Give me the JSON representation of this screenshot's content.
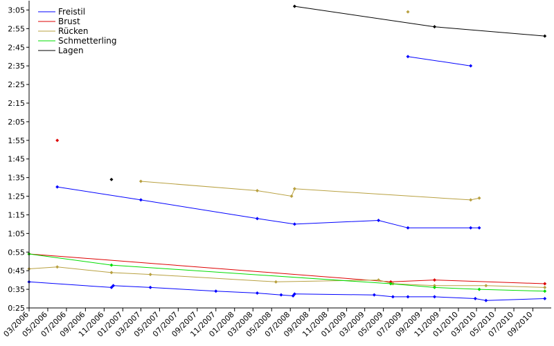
{
  "chart_data": {
    "type": "line",
    "x_axis": {
      "type": "date",
      "range": [
        "2006-03-01",
        "2010-10-31"
      ],
      "tick_labels": [
        "03/2006",
        "05/2006",
        "07/2006",
        "09/2006",
        "11/2006",
        "01/2007",
        "03/2007",
        "05/2007",
        "07/2007",
        "09/2007",
        "11/2007",
        "01/2008",
        "03/2008",
        "05/2008",
        "07/2008",
        "09/2008",
        "11/2008",
        "01/2009",
        "03/2009",
        "05/2009",
        "07/2009",
        "09/2009",
        "11/2009",
        "01/2010",
        "03/2010",
        "05/2010",
        "07/2010",
        "09/2010"
      ]
    },
    "y_axis": {
      "unit": "m:ss",
      "range": [
        "0:25",
        "3:10"
      ],
      "tick_labels": [
        "0:25",
        "0:35",
        "0:45",
        "0:55",
        "1:05",
        "1:15",
        "1:25",
        "1:35",
        "1:45",
        "1:55",
        "2:05",
        "2:15",
        "2:25",
        "2:35",
        "2:45",
        "2:55",
        "3:05"
      ]
    },
    "grid": false,
    "legend_position": "top-left",
    "series": [
      {
        "name": "Freistil",
        "color": "#0000ff",
        "lines": [
          [
            [
              "2006-03-01",
              "0:39"
            ],
            [
              "2006-11-25",
              "0:36"
            ],
            [
              "2006-12-01",
              "0:37"
            ],
            [
              "2007-04-01",
              "0:36"
            ],
            [
              "2007-11-01",
              "0:34"
            ],
            [
              "2008-03-15",
              "0:33"
            ],
            [
              "2008-06-01",
              "0:32"
            ],
            [
              "2008-07-10",
              "0:31.5"
            ],
            [
              "2008-07-15",
              "0:32.5"
            ],
            [
              "2009-04-01",
              "0:32"
            ],
            [
              "2009-06-01",
              "0:31"
            ],
            [
              "2009-07-20",
              "0:31"
            ],
            [
              "2009-10-15",
              "0:31"
            ],
            [
              "2010-02-25",
              "0:30"
            ],
            [
              "2010-04-01",
              "0:29"
            ],
            [
              "2010-10-10",
              "0:30"
            ]
          ],
          [
            [
              "2006-06-01",
              "1:30"
            ],
            [
              "2007-03-01",
              "1:23"
            ],
            [
              "2008-03-15",
              "1:13"
            ],
            [
              "2008-07-15",
              "1:10"
            ],
            [
              "2009-04-15",
              "1:12"
            ],
            [
              "2009-07-20",
              "1:08"
            ],
            [
              "2010-02-10",
              "1:08"
            ],
            [
              "2010-03-10",
              "1:08"
            ]
          ],
          [
            [
              "2009-07-20",
              "2:40"
            ],
            [
              "2010-02-10",
              "2:35"
            ]
          ]
        ]
      },
      {
        "name": "Brust",
        "color": "#dd0000",
        "lines": [
          [
            [
              "2006-03-01",
              "0:54"
            ],
            [
              "2009-05-25",
              "0:39"
            ],
            [
              "2009-10-15",
              "0:40"
            ],
            [
              "2010-10-10",
              "0:38"
            ]
          ]
        ],
        "points": [
          [
            "2006-06-01",
            "1:55"
          ]
        ]
      },
      {
        "name": "Rücken",
        "color": "#b8a040",
        "lines": [
          [
            [
              "2006-03-01",
              "0:46"
            ],
            [
              "2006-06-01",
              "0:47"
            ],
            [
              "2006-11-25",
              "0:44"
            ],
            [
              "2007-04-01",
              "0:43"
            ],
            [
              "2008-05-15",
              "0:39"
            ],
            [
              "2009-04-15",
              "0:40"
            ],
            [
              "2009-06-01",
              "0:38"
            ],
            [
              "2009-10-15",
              "0:37"
            ],
            [
              "2010-04-01",
              "0:37"
            ],
            [
              "2010-10-10",
              "0:36"
            ]
          ],
          [
            [
              "2007-03-01",
              "1:33"
            ],
            [
              "2008-03-15",
              "1:28"
            ],
            [
              "2008-07-05",
              "1:25"
            ],
            [
              "2008-07-15",
              "1:29"
            ],
            [
              "2010-02-10",
              "1:23"
            ],
            [
              "2010-03-10",
              "1:24"
            ]
          ]
        ],
        "points": [
          [
            "2009-07-20",
            "3:04"
          ]
        ]
      },
      {
        "name": "Schmetterling",
        "color": "#00dd00",
        "lines": [
          [
            [
              "2006-03-01",
              "0:54"
            ],
            [
              "2006-11-25",
              "0:48"
            ],
            [
              "2009-05-25",
              "0:38"
            ],
            [
              "2009-10-15",
              "0:36"
            ],
            [
              "2010-03-10",
              "0:35"
            ],
            [
              "2010-10-10",
              "0:34"
            ]
          ]
        ]
      },
      {
        "name": "Lagen",
        "color": "#000000",
        "lines": [
          [
            [
              "2008-07-15",
              "3:07"
            ],
            [
              "2009-10-15",
              "2:56"
            ],
            [
              "2010-10-10",
              "2:51"
            ]
          ]
        ],
        "points": [
          [
            "2006-11-25",
            "1:34"
          ]
        ]
      }
    ]
  }
}
